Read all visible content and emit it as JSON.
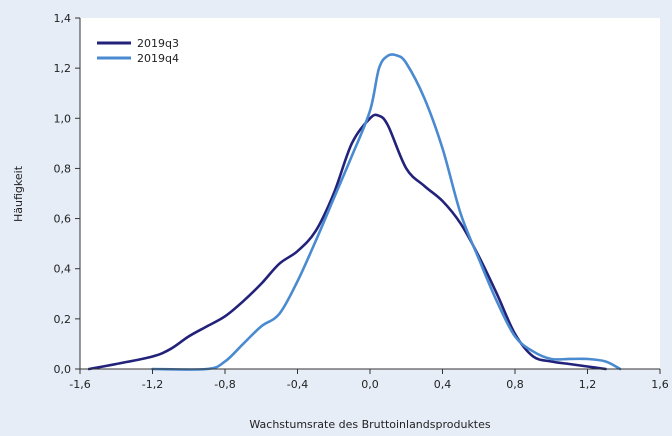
{
  "chart_data": {
    "type": "line",
    "xlabel": "Wachstumsrate des Bruttoinlandsproduktes",
    "ylabel": "Häufigkeit",
    "xlim": [
      -1.6,
      1.6
    ],
    "ylim": [
      0,
      1.4
    ],
    "x_ticks": [
      -1.6,
      -1.2,
      -0.8,
      -0.4,
      0.0,
      0.4,
      0.8,
      1.2,
      1.6
    ],
    "x_tick_labels": [
      "-1,6",
      "-1,2",
      "-0,8",
      "-0,4",
      "0,0",
      "0,4",
      "0,8",
      "1,2",
      "1,6"
    ],
    "y_ticks": [
      0.0,
      0.2,
      0.4,
      0.6,
      0.8,
      1.0,
      1.2,
      1.4
    ],
    "y_tick_labels": [
      "0,0",
      "0,2",
      "0,4",
      "0,6",
      "0,8",
      "1,0",
      "1,2",
      "1,4"
    ],
    "grid": false,
    "legend_position": "top-left",
    "series": [
      {
        "name": "2019q3",
        "color": "#22227a",
        "x": [
          -1.55,
          -1.4,
          -1.2,
          -1.1,
          -1.0,
          -0.9,
          -0.8,
          -0.7,
          -0.6,
          -0.5,
          -0.4,
          -0.3,
          -0.2,
          -0.1,
          0.0,
          0.05,
          0.1,
          0.2,
          0.3,
          0.4,
          0.5,
          0.6,
          0.7,
          0.8,
          0.9,
          1.0,
          1.1,
          1.2,
          1.3
        ],
        "y": [
          0.0,
          0.02,
          0.05,
          0.08,
          0.13,
          0.17,
          0.21,
          0.27,
          0.34,
          0.42,
          0.47,
          0.55,
          0.7,
          0.9,
          1.0,
          1.01,
          0.97,
          0.8,
          0.73,
          0.67,
          0.58,
          0.45,
          0.3,
          0.14,
          0.05,
          0.03,
          0.02,
          0.01,
          0.0
        ]
      },
      {
        "name": "2019q4",
        "color": "#4a8ad0",
        "x": [
          -1.2,
          -0.9,
          -0.8,
          -0.7,
          -0.6,
          -0.5,
          -0.4,
          -0.3,
          -0.2,
          -0.1,
          0.0,
          0.05,
          0.1,
          0.15,
          0.2,
          0.3,
          0.4,
          0.5,
          0.6,
          0.7,
          0.8,
          0.9,
          1.0,
          1.1,
          1.2,
          1.3,
          1.38
        ],
        "y": [
          0.0,
          0.0,
          0.03,
          0.1,
          0.17,
          0.22,
          0.35,
          0.51,
          0.68,
          0.85,
          1.03,
          1.2,
          1.25,
          1.25,
          1.22,
          1.08,
          0.88,
          0.62,
          0.44,
          0.27,
          0.13,
          0.07,
          0.04,
          0.04,
          0.04,
          0.03,
          0.0
        ]
      }
    ]
  }
}
